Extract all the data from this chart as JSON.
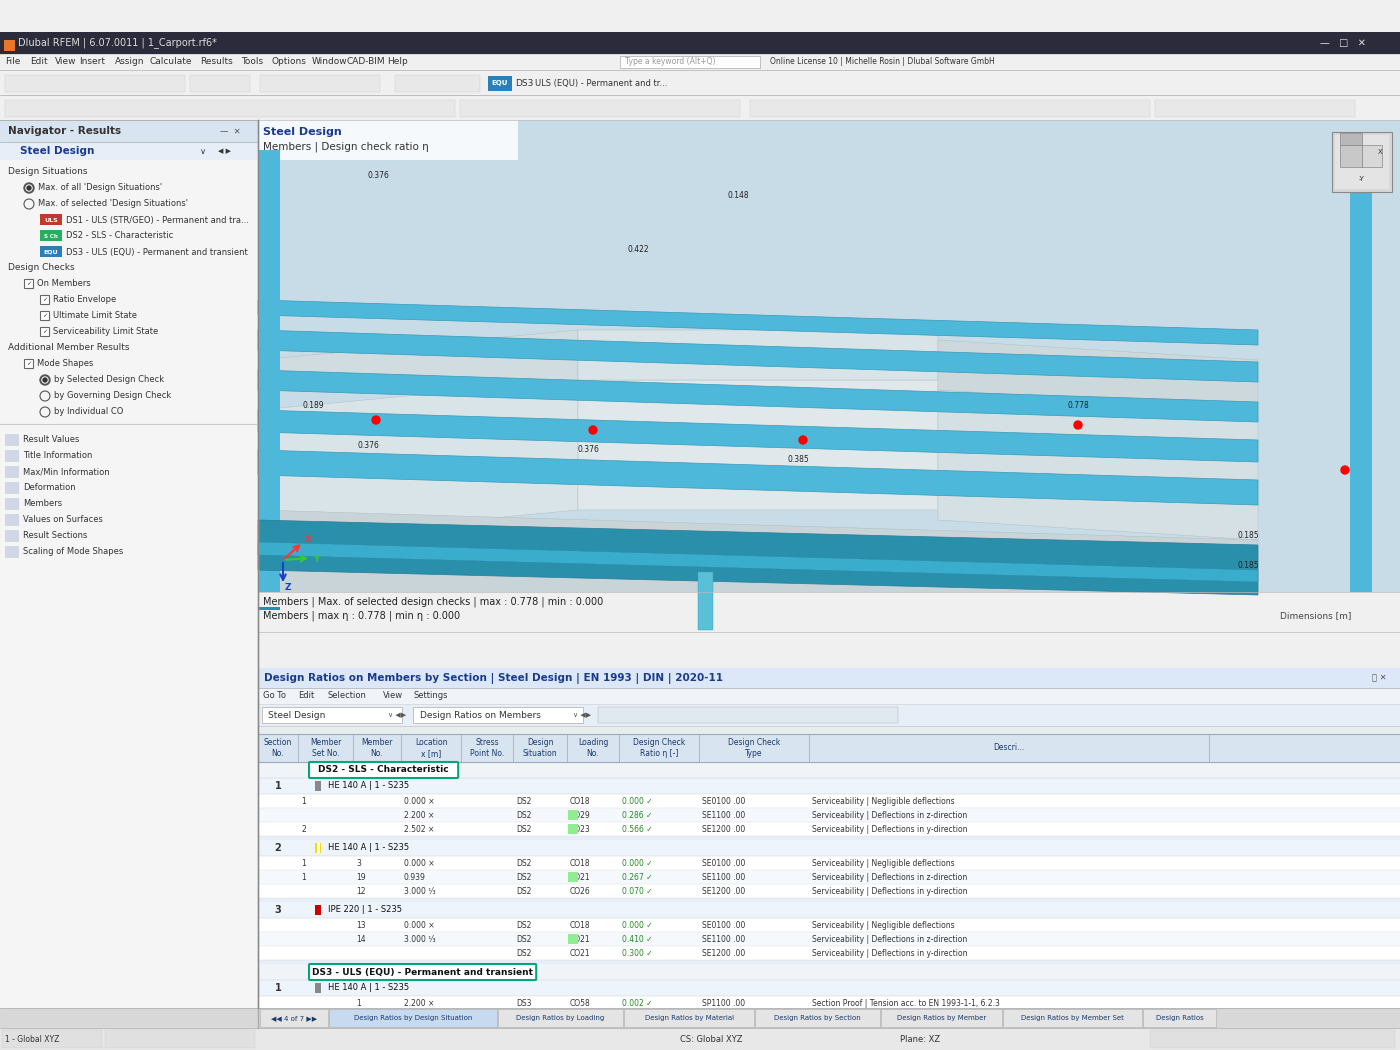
{
  "title_bar": "Dlubal RFEM | 6.07.0011 | 1_Carport.rf6*",
  "menu_items": [
    "File",
    "Edit",
    "View",
    "Insert",
    "Assign",
    "Calculate",
    "Results",
    "Tools",
    "Options",
    "Window",
    "CAD-BIM",
    "Help"
  ],
  "search_placeholder": "Type a keyword (Alt+Q)",
  "license_text": "Online License 10 | Michelle Rosin | Dlubal Software GmbH",
  "navigator_title": "Navigator - Results",
  "steel_design_label": "Steel Design",
  "view_title": "Members | Design check ratio η",
  "steel_design_header": "Steel Design",
  "status_text1": "Members | Max. of selected design checks | max : 0.778 | min : 0.000",
  "status_text2": "Members | max η : 0.778 | min η : 0.000",
  "dimensions_label": "Dimensions [m]",
  "table_title": "Design Ratios on Members by Section | Steel Design | EN 1993 | DIN | 2020-11",
  "table_menu": [
    "Go To",
    "Edit",
    "Selection",
    "View",
    "Settings"
  ],
  "dropdown1": "Steel Design",
  "dropdown2": "Design Ratios on Members",
  "ds2_label": "DS2 - SLS - Characteristic",
  "ds3_label": "DS3 - ULS (EQU) - Permanent and transient",
  "section1_label": "HE 140 A | 1 - S235",
  "section2_label": "HE 140 A | 1 - S235",
  "section3_label": "IPE 220 | 1 - S235",
  "section_ds3_label": "HE 140 A | 1 - S235",
  "bottom_nav_items": [
    "Result Values",
    "Title Information",
    "Max/Min Information",
    "Deformation",
    "Members",
    "Values on Surfaces",
    "Result Sections",
    "Scaling of Mode Shapes"
  ],
  "bg_color": "#f0f0f0",
  "title_bar_color": "#2b2b3b",
  "title_bar_text_color": "#ffffff",
  "menu_bar_color": "#f0f0f0",
  "nav_bg_color": "#f5f5f5",
  "nav_header_color": "#d8e4f0",
  "table_header_color": "#d8e4f0",
  "table_row_even": "#ffffff",
  "table_row_odd": "#f5f8fc",
  "table_section_row": "#e8f0f8",
  "table_group_row": "#f0f4f8",
  "ds2_border_color": "#00a878",
  "ds3_border_color": "#00a878",
  "tag_uls_color": "#c0392b",
  "tag_sch_color": "#27ae60",
  "tag_equ_color": "#2980b9",
  "view_bg_color": "#c8dce8",
  "beam_color": "#4db8d9",
  "beam_dark": "#2a8faa",
  "beam_light": "#a8d8ea",
  "wall_color": "#b0c4c8",
  "bottom_tab_active": "#c8daf0",
  "bottom_tab_inactive": "#e4e4e4",
  "toolbar_bg": "#f0f0f0"
}
